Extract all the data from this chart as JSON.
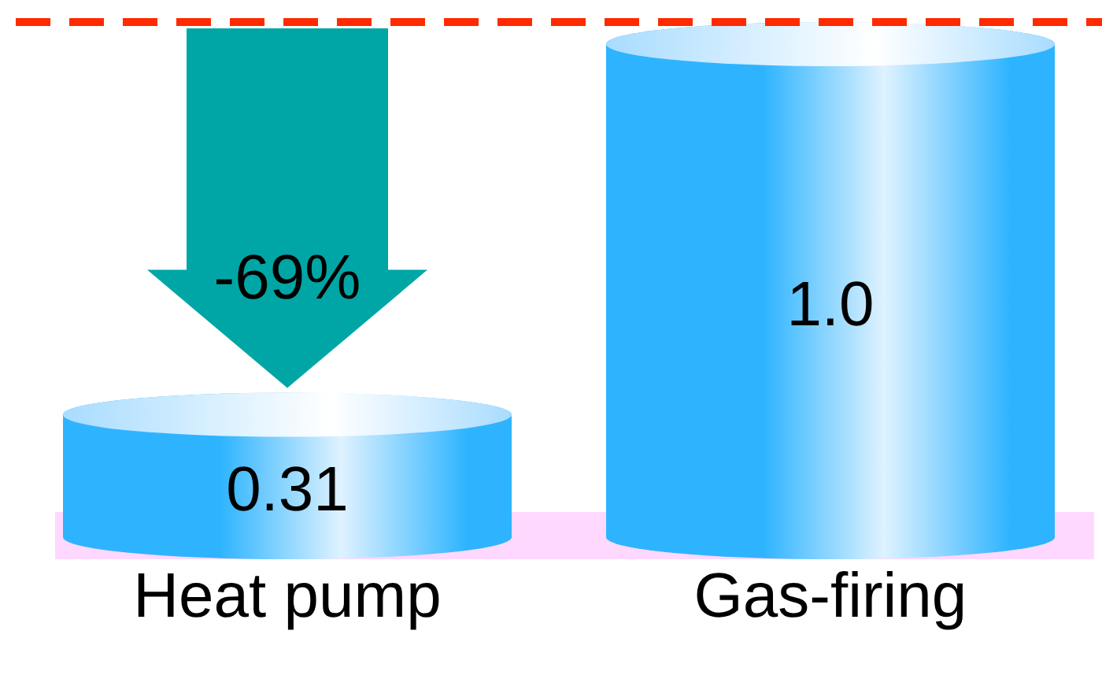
{
  "chart_data": {
    "type": "bar",
    "categories": [
      "Heat pump",
      "Gas-firing"
    ],
    "values": [
      0.31,
      1.0
    ],
    "value_labels": [
      "0.31",
      "1.0"
    ],
    "color": "#2eb4ff",
    "ref_lines": [
      {
        "axis": "y",
        "value": 1.0,
        "color": "#ff2a00",
        "line_style": "dashed"
      }
    ],
    "annotations": [
      "-69%"
    ]
  }
}
